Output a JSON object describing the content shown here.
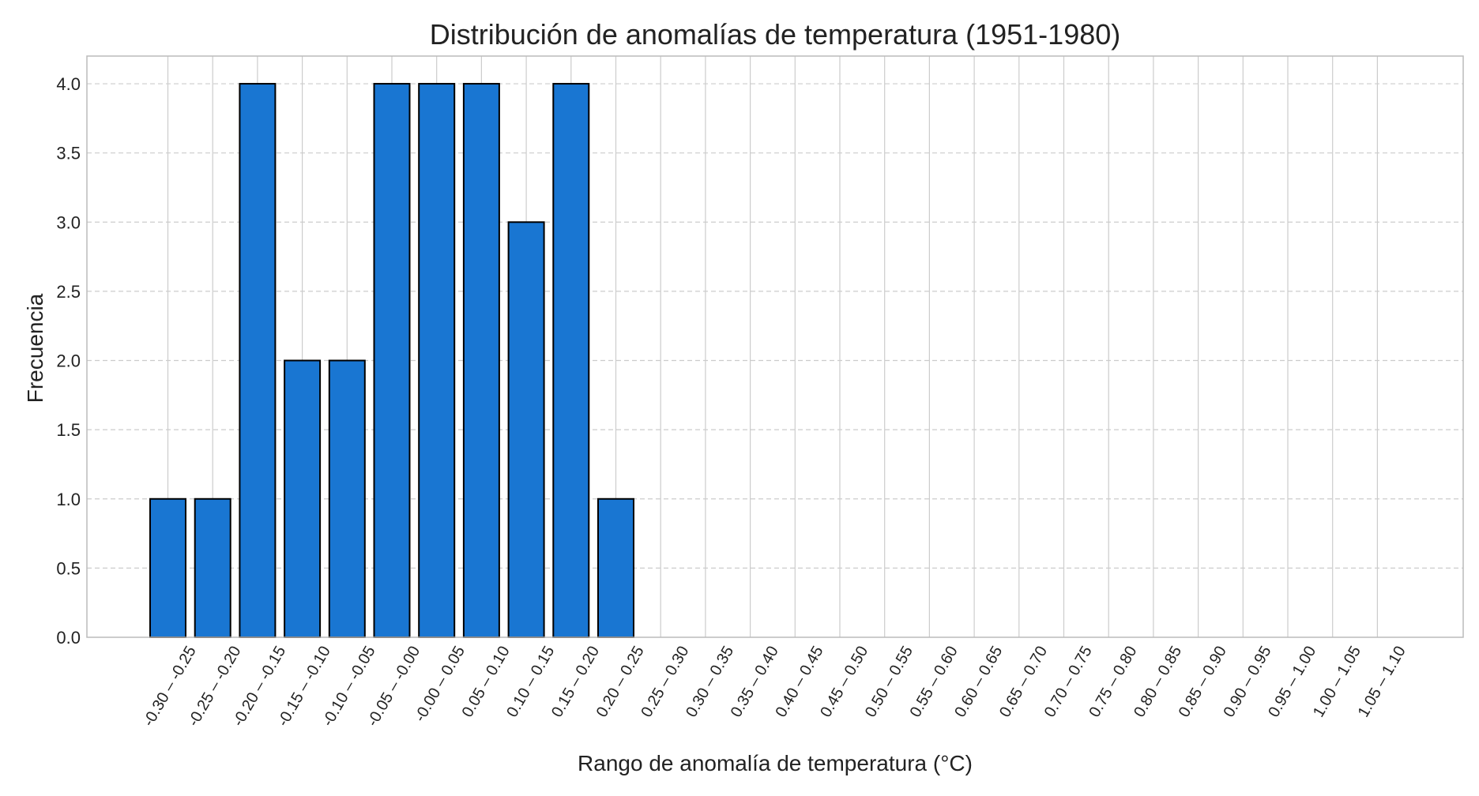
{
  "chart_data": {
    "type": "bar",
    "title": "Distribución de anomalías de temperatura (1951-1980)",
    "xlabel": "Rango de anomalía de temperatura (°C)",
    "ylabel": "Frecuencia",
    "ylim": [
      0,
      4.2
    ],
    "yticks": [
      "0.0",
      "0.5",
      "1.0",
      "1.5",
      "2.0",
      "2.5",
      "3.0",
      "3.5",
      "4.0"
    ],
    "grid": true,
    "bar_color": "#1976d2",
    "categories": [
      "-0.30 – -0.25",
      "-0.25 – -0.20",
      "-0.20 – -0.15",
      "-0.15 – -0.10",
      "-0.10 – -0.05",
      "-0.05 – -0.00",
      "-0.00 – 0.05",
      "0.05 – 0.10",
      "0.10 – 0.15",
      "0.15 – 0.20",
      "0.20 – 0.25",
      "0.25 – 0.30",
      "0.30 – 0.35",
      "0.35 – 0.40",
      "0.40 – 0.45",
      "0.45 – 0.50",
      "0.50 – 0.55",
      "0.55 – 0.60",
      "0.60 – 0.65",
      "0.65 – 0.70",
      "0.70 – 0.75",
      "0.75 – 0.80",
      "0.80 – 0.85",
      "0.85 – 0.90",
      "0.90 – 0.95",
      "0.95 – 1.00",
      "1.00 – 1.05",
      "1.05 – 1.10"
    ],
    "values": [
      1,
      1,
      4,
      2,
      2,
      4,
      4,
      4,
      3,
      4,
      1,
      0,
      0,
      0,
      0,
      0,
      0,
      0,
      0,
      0,
      0,
      0,
      0,
      0,
      0,
      0,
      0,
      0
    ]
  }
}
